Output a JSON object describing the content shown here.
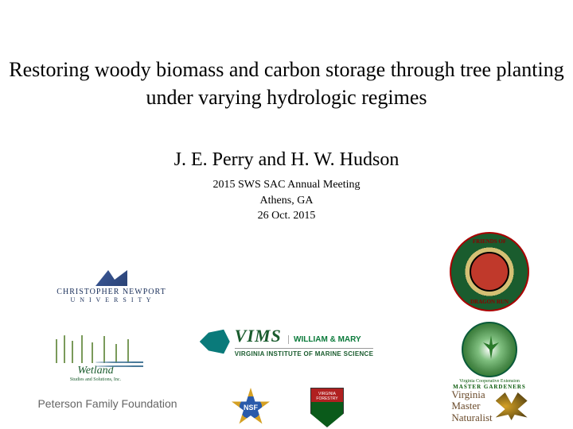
{
  "title": "Restoring woody biomass and carbon storage through tree planting under varying hydrologic regimes",
  "authors": "J. E. Perry and H. W. Hudson",
  "meeting": {
    "line1": "2015 SWS  SAC Annual Meeting",
    "line2": "Athens, GA",
    "line3": "26 Oct. 2015"
  },
  "logos": {
    "cnu": {
      "name": "CHRISTOPHER NEWPORT",
      "sub": "U N I V E R S I T Y"
    },
    "dragon": {
      "top": "FRIENDS OF",
      "bot": "DRAGON RUN"
    },
    "wetland": {
      "name": "Wetland",
      "sub": "Studies and Solutions, Inc."
    },
    "vims": {
      "main": "VIMS",
      "wm": "WILLIAM & MARY",
      "sub": "VIRGINIA INSTITUTE OF MARINE SCIENCE"
    },
    "vce": {
      "top": "Virginia Cooperative Extension",
      "sub": "MASTER GARDENERS"
    },
    "peterson": "Peterson Family Foundation",
    "nsf": "NSF",
    "vdof": "VIRGINIA FORESTRY",
    "vmn": "Virginia\nMaster\nNaturalist"
  },
  "style": {
    "title_fontsize": 26,
    "authors_fontsize": 24,
    "meeting_fontsize": 14,
    "background": "#ffffff",
    "text_color": "#000000",
    "font_family": "Georgia, Times New Roman, serif"
  }
}
